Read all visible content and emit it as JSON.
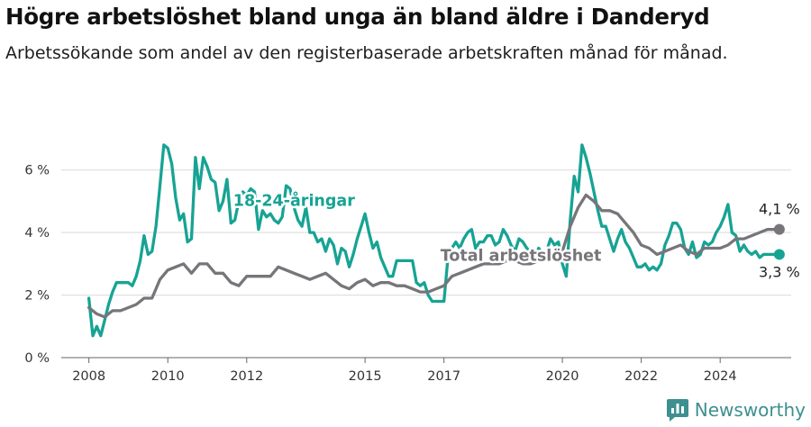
{
  "header": {
    "title": "Högre arbetslöshet bland unga än bland äldre i Danderyd",
    "subtitle": "Arbetssökande som andel av den registerbaserade arbetskraften månad för månad."
  },
  "brand": {
    "name": "Newsworthy",
    "icon": "newsworthy-logo-icon",
    "color": "#3e8f8f"
  },
  "colors": {
    "youth": "#17a394",
    "total": "#77757a",
    "grid": "#d9d9d9"
  },
  "chart_data": {
    "type": "line",
    "title": "Högre arbetslöshet bland unga än bland äldre i Danderyd",
    "subtitle": "Arbetssökande som andel av den registerbaserade arbetskraften månad för månad.",
    "xlabel": "",
    "ylabel": "",
    "x_unit": "year",
    "xlim": [
      2007.3,
      2025.8
    ],
    "ylim": [
      0,
      7
    ],
    "y_ticks": [
      0,
      2,
      4,
      6
    ],
    "y_tick_labels": [
      "0 %",
      "2 %",
      "4 %",
      "6 %"
    ],
    "x_ticks": [
      2008,
      2010,
      2012,
      2015,
      2017,
      2020,
      2022,
      2024
    ],
    "x_tick_labels": [
      "2008",
      "2010",
      "2012",
      "2015",
      "2017",
      "2020",
      "2022",
      "2024"
    ],
    "grid": true,
    "legend": "inline labels",
    "series": [
      {
        "name": "18-24-åringar",
        "color": "#17a394",
        "end_label": "3,3 %",
        "points": [
          [
            2008.0,
            1.9
          ],
          [
            2008.1,
            0.7
          ],
          [
            2008.2,
            1.0
          ],
          [
            2008.3,
            0.7
          ],
          [
            2008.4,
            1.2
          ],
          [
            2008.5,
            1.7
          ],
          [
            2008.6,
            2.1
          ],
          [
            2008.7,
            2.4
          ],
          [
            2008.8,
            2.4
          ],
          [
            2008.9,
            2.4
          ],
          [
            2009.0,
            2.4
          ],
          [
            2009.1,
            2.3
          ],
          [
            2009.2,
            2.6
          ],
          [
            2009.3,
            3.1
          ],
          [
            2009.4,
            3.9
          ],
          [
            2009.5,
            3.3
          ],
          [
            2009.6,
            3.4
          ],
          [
            2009.7,
            4.2
          ],
          [
            2009.8,
            5.5
          ],
          [
            2009.9,
            6.8
          ],
          [
            2010.0,
            6.7
          ],
          [
            2010.1,
            6.2
          ],
          [
            2010.2,
            5.1
          ],
          [
            2010.3,
            4.4
          ],
          [
            2010.4,
            4.6
          ],
          [
            2010.5,
            3.7
          ],
          [
            2010.6,
            3.8
          ],
          [
            2010.7,
            6.4
          ],
          [
            2010.8,
            5.4
          ],
          [
            2010.9,
            6.4
          ],
          [
            2011.0,
            6.1
          ],
          [
            2011.1,
            5.7
          ],
          [
            2011.2,
            5.6
          ],
          [
            2011.3,
            4.7
          ],
          [
            2011.4,
            5.0
          ],
          [
            2011.5,
            5.7
          ],
          [
            2011.6,
            4.3
          ],
          [
            2011.7,
            4.4
          ],
          [
            2011.8,
            5.0
          ],
          [
            2011.9,
            5.3
          ],
          [
            2012.0,
            5.2
          ],
          [
            2012.1,
            5.4
          ],
          [
            2012.2,
            5.3
          ],
          [
            2012.3,
            4.1
          ],
          [
            2012.4,
            4.7
          ],
          [
            2012.5,
            4.5
          ],
          [
            2012.6,
            4.6
          ],
          [
            2012.7,
            4.4
          ],
          [
            2012.8,
            4.3
          ],
          [
            2012.9,
            4.5
          ],
          [
            2013.0,
            5.5
          ],
          [
            2013.1,
            5.4
          ],
          [
            2013.2,
            4.8
          ],
          [
            2013.3,
            4.4
          ],
          [
            2013.4,
            4.2
          ],
          [
            2013.5,
            4.8
          ],
          [
            2013.6,
            4.0
          ],
          [
            2013.7,
            4.0
          ],
          [
            2013.8,
            3.7
          ],
          [
            2013.9,
            3.8
          ],
          [
            2014.0,
            3.4
          ],
          [
            2014.1,
            3.8
          ],
          [
            2014.2,
            3.6
          ],
          [
            2014.3,
            3.0
          ],
          [
            2014.4,
            3.5
          ],
          [
            2014.5,
            3.4
          ],
          [
            2014.6,
            2.9
          ],
          [
            2014.7,
            3.3
          ],
          [
            2014.8,
            3.8
          ],
          [
            2014.9,
            4.2
          ],
          [
            2015.0,
            4.6
          ],
          [
            2015.1,
            4.0
          ],
          [
            2015.2,
            3.5
          ],
          [
            2015.3,
            3.7
          ],
          [
            2015.4,
            3.2
          ],
          [
            2015.5,
            2.9
          ],
          [
            2015.6,
            2.6
          ],
          [
            2015.7,
            2.6
          ],
          [
            2015.8,
            3.1
          ],
          [
            2015.9,
            3.1
          ],
          [
            2016.0,
            3.1
          ],
          [
            2016.1,
            3.1
          ],
          [
            2016.2,
            3.1
          ],
          [
            2016.3,
            2.4
          ],
          [
            2016.4,
            2.3
          ],
          [
            2016.5,
            2.4
          ],
          [
            2016.6,
            2.0
          ],
          [
            2016.7,
            1.8
          ],
          [
            2016.8,
            1.8
          ],
          [
            2016.9,
            1.8
          ],
          [
            2017.0,
            1.8
          ],
          [
            2017.1,
            3.2
          ],
          [
            2017.2,
            3.5
          ],
          [
            2017.3,
            3.7
          ],
          [
            2017.4,
            3.5
          ],
          [
            2017.5,
            3.8
          ],
          [
            2017.6,
            4.0
          ],
          [
            2017.7,
            4.1
          ],
          [
            2017.8,
            3.5
          ],
          [
            2017.9,
            3.7
          ],
          [
            2018.0,
            3.7
          ],
          [
            2018.1,
            3.9
          ],
          [
            2018.2,
            3.9
          ],
          [
            2018.3,
            3.6
          ],
          [
            2018.4,
            3.7
          ],
          [
            2018.5,
            4.1
          ],
          [
            2018.6,
            3.9
          ],
          [
            2018.7,
            3.6
          ],
          [
            2018.8,
            3.4
          ],
          [
            2018.9,
            3.8
          ],
          [
            2019.0,
            3.7
          ],
          [
            2019.1,
            3.5
          ],
          [
            2019.2,
            3.4
          ],
          [
            2019.3,
            3.2
          ],
          [
            2019.4,
            3.5
          ],
          [
            2019.5,
            3.3
          ],
          [
            2019.6,
            3.4
          ],
          [
            2019.7,
            3.8
          ],
          [
            2019.8,
            3.6
          ],
          [
            2019.9,
            3.7
          ],
          [
            2020.0,
            3.0
          ],
          [
            2020.1,
            2.6
          ],
          [
            2020.2,
            4.4
          ],
          [
            2020.3,
            5.8
          ],
          [
            2020.4,
            5.3
          ],
          [
            2020.5,
            6.8
          ],
          [
            2020.6,
            6.4
          ],
          [
            2020.7,
            5.9
          ],
          [
            2020.8,
            5.3
          ],
          [
            2020.9,
            4.7
          ],
          [
            2021.0,
            4.2
          ],
          [
            2021.1,
            4.2
          ],
          [
            2021.2,
            3.8
          ],
          [
            2021.3,
            3.4
          ],
          [
            2021.4,
            3.8
          ],
          [
            2021.5,
            4.1
          ],
          [
            2021.6,
            3.7
          ],
          [
            2021.7,
            3.5
          ],
          [
            2021.8,
            3.2
          ],
          [
            2021.9,
            2.9
          ],
          [
            2022.0,
            2.9
          ],
          [
            2022.1,
            3.0
          ],
          [
            2022.2,
            2.8
          ],
          [
            2022.3,
            2.9
          ],
          [
            2022.4,
            2.8
          ],
          [
            2022.5,
            3.0
          ],
          [
            2022.6,
            3.6
          ],
          [
            2022.7,
            3.9
          ],
          [
            2022.8,
            4.3
          ],
          [
            2022.9,
            4.3
          ],
          [
            2023.0,
            4.1
          ],
          [
            2023.1,
            3.5
          ],
          [
            2023.2,
            3.3
          ],
          [
            2023.3,
            3.7
          ],
          [
            2023.4,
            3.2
          ],
          [
            2023.5,
            3.3
          ],
          [
            2023.6,
            3.7
          ],
          [
            2023.7,
            3.6
          ],
          [
            2023.8,
            3.7
          ],
          [
            2023.9,
            4.0
          ],
          [
            2024.0,
            4.2
          ],
          [
            2024.1,
            4.5
          ],
          [
            2024.2,
            4.9
          ],
          [
            2024.3,
            4.0
          ],
          [
            2024.4,
            3.9
          ],
          [
            2024.5,
            3.4
          ],
          [
            2024.6,
            3.6
          ],
          [
            2024.7,
            3.4
          ],
          [
            2024.8,
            3.3
          ],
          [
            2024.9,
            3.4
          ],
          [
            2025.0,
            3.2
          ],
          [
            2025.1,
            3.3
          ],
          [
            2025.2,
            3.3
          ],
          [
            2025.3,
            3.3
          ],
          [
            2025.4,
            3.3
          ],
          [
            2025.5,
            3.3
          ]
        ]
      },
      {
        "name": "Total arbetslöshet",
        "color": "#77757a",
        "end_label": "4,1 %",
        "points": [
          [
            2008.0,
            1.6
          ],
          [
            2008.2,
            1.4
          ],
          [
            2008.4,
            1.3
          ],
          [
            2008.6,
            1.5
          ],
          [
            2008.8,
            1.5
          ],
          [
            2009.0,
            1.6
          ],
          [
            2009.2,
            1.7
          ],
          [
            2009.4,
            1.9
          ],
          [
            2009.6,
            1.9
          ],
          [
            2009.8,
            2.5
          ],
          [
            2010.0,
            2.8
          ],
          [
            2010.2,
            2.9
          ],
          [
            2010.4,
            3.0
          ],
          [
            2010.6,
            2.7
          ],
          [
            2010.8,
            3.0
          ],
          [
            2011.0,
            3.0
          ],
          [
            2011.2,
            2.7
          ],
          [
            2011.4,
            2.7
          ],
          [
            2011.6,
            2.4
          ],
          [
            2011.8,
            2.3
          ],
          [
            2012.0,
            2.6
          ],
          [
            2012.2,
            2.6
          ],
          [
            2012.4,
            2.6
          ],
          [
            2012.6,
            2.6
          ],
          [
            2012.8,
            2.9
          ],
          [
            2013.0,
            2.8
          ],
          [
            2013.2,
            2.7
          ],
          [
            2013.4,
            2.6
          ],
          [
            2013.6,
            2.5
          ],
          [
            2013.8,
            2.6
          ],
          [
            2014.0,
            2.7
          ],
          [
            2014.2,
            2.5
          ],
          [
            2014.4,
            2.3
          ],
          [
            2014.6,
            2.2
          ],
          [
            2014.8,
            2.4
          ],
          [
            2015.0,
            2.5
          ],
          [
            2015.2,
            2.3
          ],
          [
            2015.4,
            2.4
          ],
          [
            2015.6,
            2.4
          ],
          [
            2015.8,
            2.3
          ],
          [
            2016.0,
            2.3
          ],
          [
            2016.2,
            2.2
          ],
          [
            2016.4,
            2.1
          ],
          [
            2016.6,
            2.1
          ],
          [
            2016.8,
            2.2
          ],
          [
            2017.0,
            2.3
          ],
          [
            2017.2,
            2.6
          ],
          [
            2017.4,
            2.7
          ],
          [
            2017.6,
            2.8
          ],
          [
            2017.8,
            2.9
          ],
          [
            2018.0,
            3.0
          ],
          [
            2018.2,
            3.0
          ],
          [
            2018.4,
            3.0
          ],
          [
            2018.6,
            3.1
          ],
          [
            2018.8,
            3.1
          ],
          [
            2019.0,
            3.0
          ],
          [
            2019.2,
            3.0
          ],
          [
            2019.4,
            3.1
          ],
          [
            2019.6,
            3.2
          ],
          [
            2019.8,
            3.3
          ],
          [
            2020.0,
            3.4
          ],
          [
            2020.2,
            4.2
          ],
          [
            2020.4,
            4.8
          ],
          [
            2020.6,
            5.2
          ],
          [
            2020.8,
            5.0
          ],
          [
            2021.0,
            4.7
          ],
          [
            2021.2,
            4.7
          ],
          [
            2021.4,
            4.6
          ],
          [
            2021.6,
            4.3
          ],
          [
            2021.8,
            4.0
          ],
          [
            2022.0,
            3.6
          ],
          [
            2022.2,
            3.5
          ],
          [
            2022.4,
            3.3
          ],
          [
            2022.6,
            3.4
          ],
          [
            2022.8,
            3.5
          ],
          [
            2023.0,
            3.6
          ],
          [
            2023.2,
            3.4
          ],
          [
            2023.4,
            3.3
          ],
          [
            2023.6,
            3.5
          ],
          [
            2023.8,
            3.5
          ],
          [
            2024.0,
            3.5
          ],
          [
            2024.2,
            3.6
          ],
          [
            2024.4,
            3.8
          ],
          [
            2024.6,
            3.8
          ],
          [
            2024.8,
            3.9
          ],
          [
            2025.0,
            4.0
          ],
          [
            2025.2,
            4.1
          ],
          [
            2025.4,
            4.1
          ],
          [
            2025.5,
            4.1
          ]
        ]
      }
    ]
  }
}
